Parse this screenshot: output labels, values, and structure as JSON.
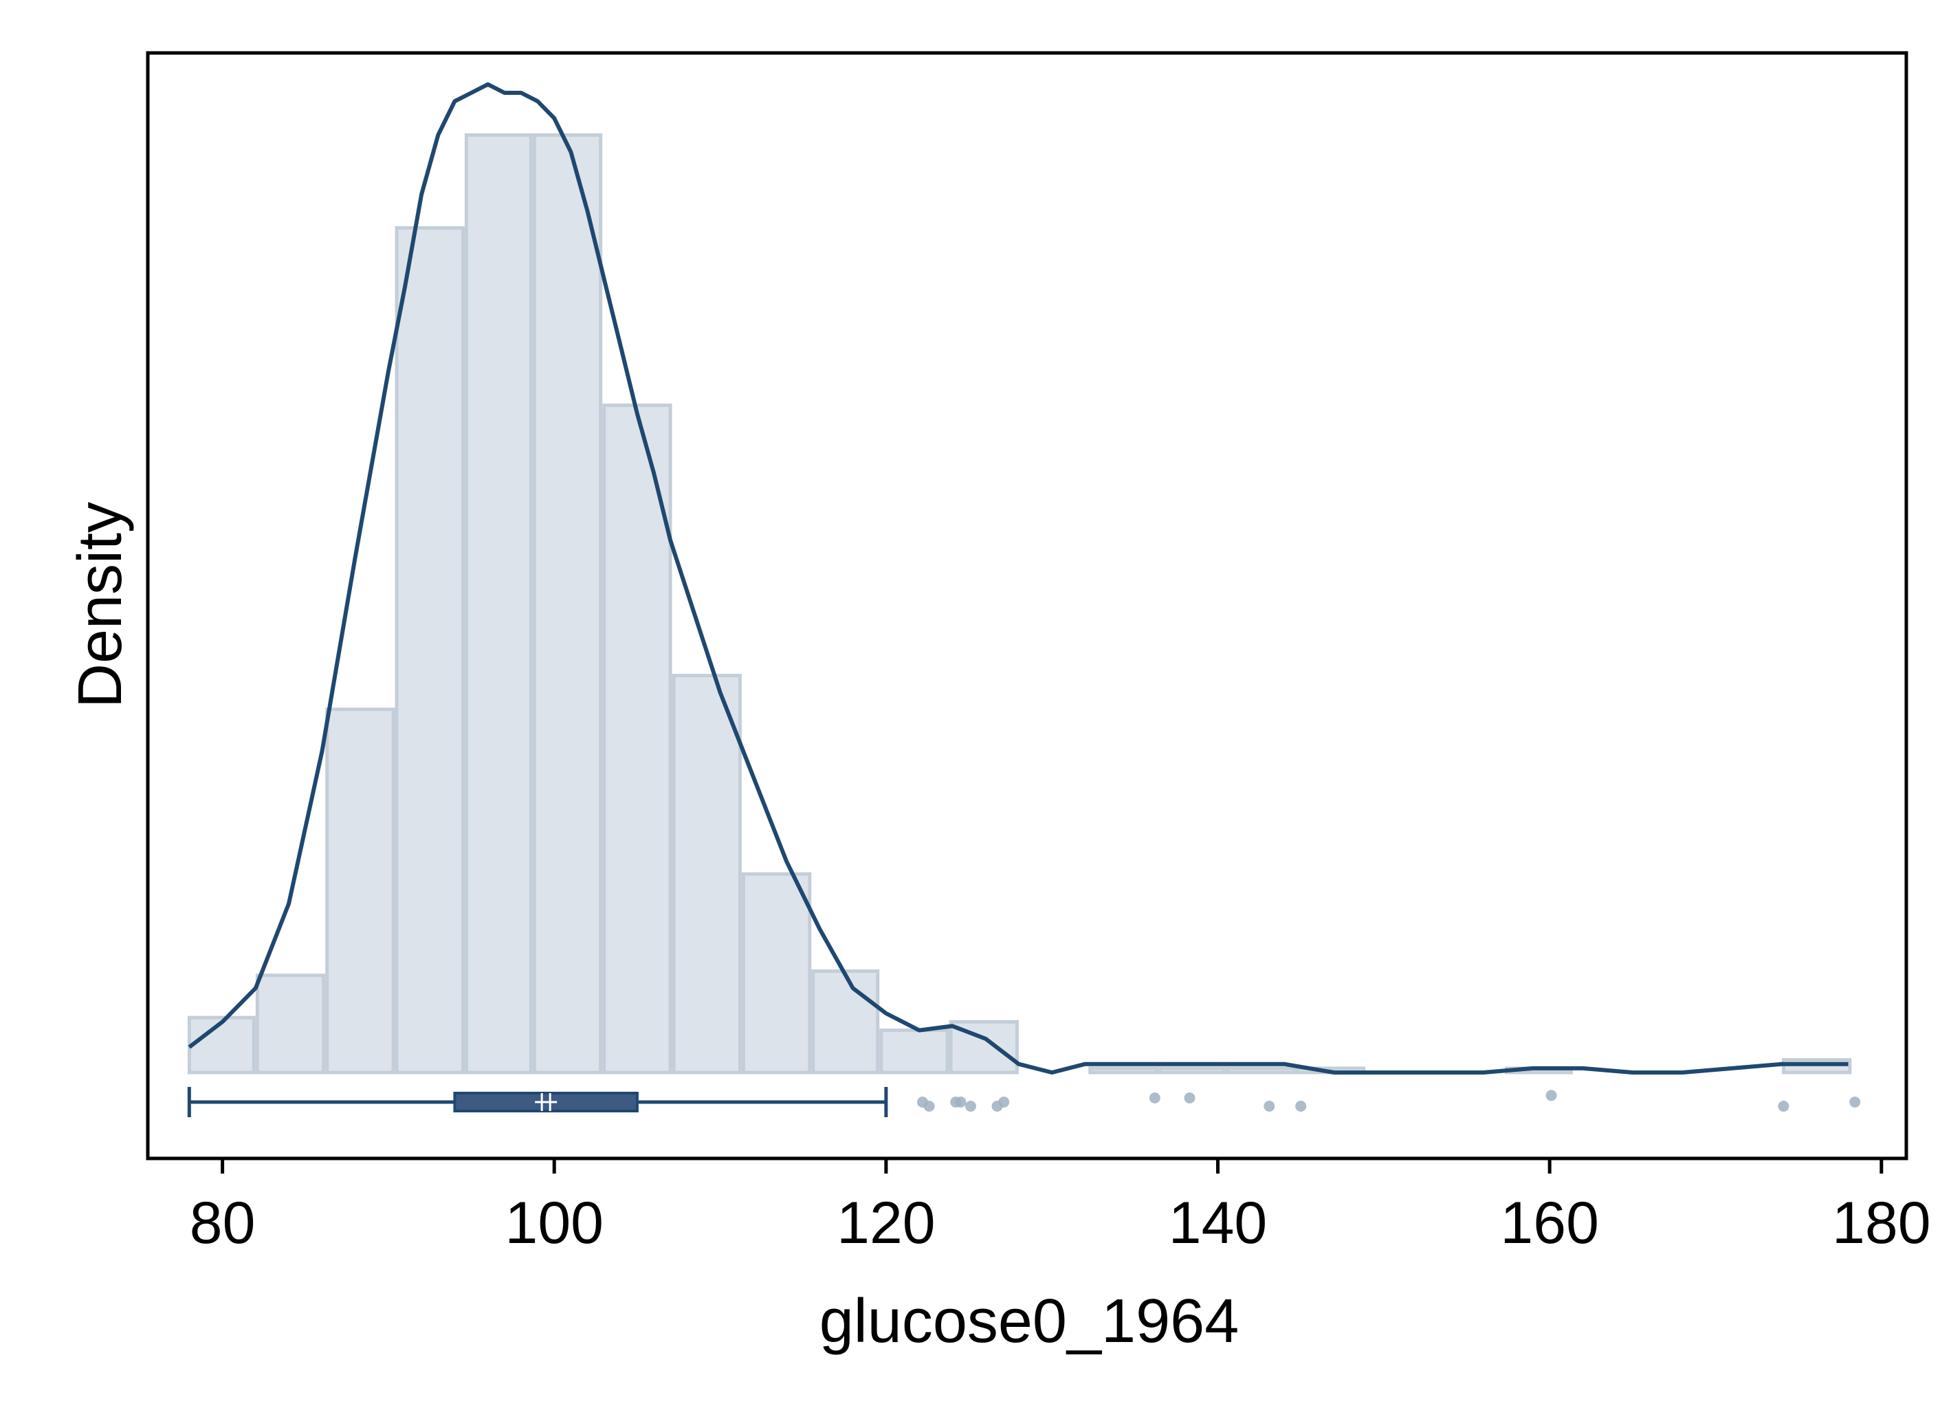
{
  "chart_data": {
    "type": "histogram",
    "title": "",
    "xlabel": "glucose0_1964",
    "ylabel": "Density",
    "xlim": [
      75.5,
      181.5
    ],
    "ylim": [
      0,
      1.16
    ],
    "x_ticks": [
      80,
      100,
      120,
      140,
      160,
      180
    ],
    "x_tick_labels": [
      "80",
      "100",
      "120",
      "140",
      "160",
      "180"
    ],
    "y_ticks_shown": false,
    "grid": false,
    "legend": "none",
    "colors": {
      "bar_fill": "#dde3ea",
      "bar_stroke": "#c3ced8",
      "density_line": "#1f4870",
      "box": "#3c5a82",
      "outlier": "#9fb0c2",
      "frame": "#000000"
    },
    "histogram": {
      "bins": [
        {
          "start": 77.9,
          "end": 82.0,
          "height": 0.065
        },
        {
          "start": 82.0,
          "end": 86.2,
          "height": 0.115
        },
        {
          "start": 86.2,
          "end": 90.4,
          "height": 0.43
        },
        {
          "start": 90.4,
          "end": 94.6,
          "height": 1.0
        },
        {
          "start": 94.6,
          "end": 98.7,
          "height": 1.11
        },
        {
          "start": 98.7,
          "end": 102.9,
          "height": 1.11
        },
        {
          "start": 102.9,
          "end": 107.1,
          "height": 0.79
        },
        {
          "start": 107.1,
          "end": 111.3,
          "height": 0.47
        },
        {
          "start": 111.3,
          "end": 115.5,
          "height": 0.235
        },
        {
          "start": 115.5,
          "end": 119.6,
          "height": 0.12
        },
        {
          "start": 119.6,
          "end": 123.8,
          "height": 0.05
        },
        {
          "start": 123.8,
          "end": 128.0,
          "height": 0.06
        },
        {
          "start": 128.0,
          "end": 132.2,
          "height": 0.0
        },
        {
          "start": 132.2,
          "end": 136.4,
          "height": 0.005
        },
        {
          "start": 136.4,
          "end": 140.5,
          "height": 0.005
        },
        {
          "start": 140.5,
          "end": 144.7,
          "height": 0.005
        },
        {
          "start": 144.7,
          "end": 148.9,
          "height": 0.005
        },
        {
          "start": 148.9,
          "end": 153.1,
          "height": 0.0
        },
        {
          "start": 153.1,
          "end": 157.3,
          "height": 0.0
        },
        {
          "start": 157.3,
          "end": 161.4,
          "height": 0.005
        },
        {
          "start": 161.4,
          "end": 165.6,
          "height": 0.0
        },
        {
          "start": 165.6,
          "end": 169.8,
          "height": 0.0
        },
        {
          "start": 169.8,
          "end": 174.0,
          "height": 0.0
        },
        {
          "start": 174.0,
          "end": 178.2,
          "height": 0.015
        }
      ]
    },
    "density": {
      "x": [
        78,
        80,
        82,
        84,
        86,
        88,
        90,
        91,
        92,
        93,
        94,
        95,
        96,
        97,
        98,
        99,
        100,
        101,
        102,
        103,
        104,
        105,
        106,
        107,
        108,
        109,
        110,
        112,
        114,
        116,
        118,
        120,
        122,
        124,
        126,
        128,
        130,
        132,
        135,
        138,
        141,
        144,
        147,
        150,
        153,
        156,
        159,
        162,
        165,
        168,
        171,
        174,
        176,
        178
      ],
      "y": [
        0.03,
        0.06,
        0.1,
        0.2,
        0.38,
        0.61,
        0.83,
        0.93,
        1.04,
        1.11,
        1.15,
        1.16,
        1.17,
        1.16,
        1.16,
        1.15,
        1.13,
        1.09,
        1.02,
        0.94,
        0.86,
        0.78,
        0.71,
        0.63,
        0.57,
        0.51,
        0.45,
        0.35,
        0.25,
        0.17,
        0.1,
        0.07,
        0.05,
        0.055,
        0.04,
        0.01,
        0.0,
        0.01,
        0.01,
        0.01,
        0.01,
        0.01,
        0.0,
        0.0,
        0.0,
        0.0,
        0.005,
        0.005,
        0.0,
        0.0,
        0.005,
        0.01,
        0.01,
        0.01
      ]
    },
    "boxplot": {
      "whisker_low": 78,
      "q1": 94,
      "median": 99.5,
      "q3": 105,
      "whisker_high": 120,
      "outliers": [
        122.2,
        122.6,
        124.2,
        124.5,
        125.1,
        126.7,
        127.1,
        136.2,
        138.3,
        143.1,
        145.0,
        160.1,
        174.1,
        178.4
      ],
      "outlier_jitter": [
        0,
        0.5,
        0,
        0,
        0.5,
        0.5,
        0,
        -0.5,
        -0.5,
        0.5,
        0.5,
        -0.8,
        0.5,
        0
      ]
    }
  }
}
